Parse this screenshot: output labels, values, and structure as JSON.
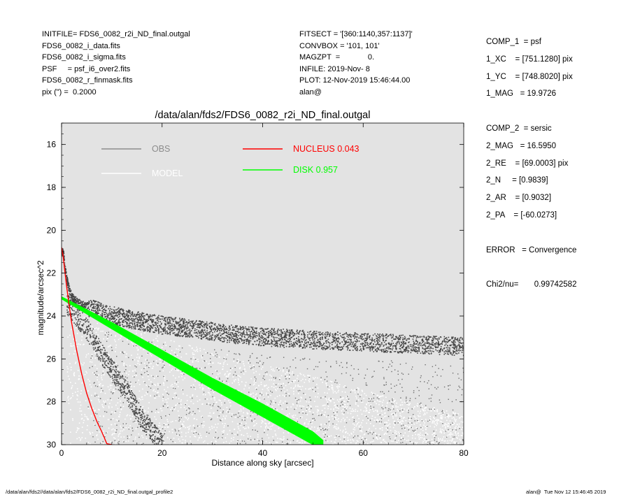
{
  "header_left": [
    "INITFILE= FDS6_0082_r2i_ND_final.outgal",
    "FDS6_0082_i_data.fits",
    "FDS6_0082_i_sigma.fits",
    "PSF     = psf_i6_over2.fits",
    "FDS6_0082_r_finmask.fits",
    "pix (\") =  0.2000"
  ],
  "header_mid": [
    "FITSECT = '[360:1140,357:1137]'",
    "CONVBOX = '101, 101'",
    "MAGZPT  =             0.",
    "INFILE: 2019-Nov- 8",
    "PLOT: 12-Nov-2019 15:46:44.00",
    "alan@"
  ],
  "header_right": [
    "COMP_1  = psf",
    "1_XC    = [751.1280] pix",
    "1_YC    = [748.8020] pix",
    "1_MAG   = 19.9726",
    "",
    "COMP_2  = sersic",
    "2_MAG   = 16.5950",
    "2_RE    = [69.0003] pix",
    "2_N     = [0.9839]",
    "2_AR    = [0.9032]",
    "2_PA    = [-60.0273]",
    "",
    "ERROR   = Convergence",
    "",
    "Chi2/nu=       0.99742582"
  ],
  "footer": {
    "left": "/data/alan/fds2//data/alan/fds2/FDS6_0082_r2i_ND_final.outgal_profile2",
    "right": "alan@  Tue Nov 12 15:46:45 2019"
  },
  "chart_data": {
    "type": "scatter",
    "title": "/data/alan/fds2/FDS6_0082_r2i_ND_final.outgal",
    "xlabel": "Distance along sky [arcsec]",
    "ylabel": "magnitude/arcsec^2",
    "xlim": [
      0,
      80
    ],
    "ylim": [
      30,
      15
    ],
    "y_inverted": true,
    "x_ticks": [
      0,
      20,
      40,
      60,
      80
    ],
    "y_ticks": [
      16,
      18,
      20,
      22,
      24,
      26,
      28,
      30
    ],
    "grid": false,
    "background": "#e3e3e3",
    "legend": [
      {
        "label": "OBS",
        "color": "#8c8c8c",
        "position": "top-left"
      },
      {
        "label": "MODEL",
        "color": "#ffffff",
        "position": "top-left"
      },
      {
        "label": "NUCLEUS  0.043",
        "color": "#ff0000",
        "position": "top-center"
      },
      {
        "label": "DISK  0.957",
        "color": "#00ff00",
        "position": "top-center"
      }
    ],
    "series": [
      {
        "name": "OBS",
        "style": "scatter",
        "color": "#444444",
        "x": [
          0.3,
          0.5,
          1,
          1.5,
          2,
          3,
          4,
          5,
          6,
          8,
          10,
          12,
          15,
          20,
          25,
          30,
          35,
          40,
          50,
          60,
          70,
          80
        ],
        "y": [
          21.0,
          21.6,
          22.3,
          22.8,
          23.1,
          23.3,
          23.45,
          23.55,
          23.65,
          23.8,
          23.95,
          24.05,
          24.2,
          24.4,
          24.55,
          24.7,
          24.85,
          24.95,
          25.1,
          25.2,
          25.3,
          25.4
        ]
      },
      {
        "name": "OBS (lower envelope)",
        "style": "scatter",
        "color": "#444444",
        "x": [
          1,
          3,
          5,
          7,
          10,
          13,
          16,
          20
        ],
        "y": [
          23.4,
          24.0,
          24.6,
          25.4,
          26.5,
          27.6,
          28.8,
          30.0
        ]
      },
      {
        "name": "MODEL",
        "style": "scatter",
        "color": "#ffffff",
        "x": [
          0,
          10,
          20,
          30,
          40,
          50,
          60,
          70,
          80
        ],
        "y": [
          23.2,
          24.5,
          25.4,
          26.0,
          26.6,
          27.2,
          27.8,
          28.4,
          29.0
        ]
      },
      {
        "name": "NUCLEUS",
        "style": "line",
        "color": "#ff0000",
        "x": [
          0,
          0.3,
          0.6,
          1.0,
          1.5,
          2.0,
          3.0,
          4.0,
          5.0,
          6.0,
          7.0,
          8.0,
          9.0,
          10.0
        ],
        "y": [
          20.8,
          21.2,
          21.8,
          22.6,
          23.5,
          24.3,
          25.6,
          26.7,
          27.6,
          28.3,
          28.9,
          29.4,
          29.95,
          30.0
        ]
      },
      {
        "name": "DISK",
        "style": "band",
        "color": "#00ff00",
        "x": [
          0,
          10,
          20,
          30,
          40,
          50,
          52
        ],
        "y_upper": [
          23.1,
          24.3,
          25.6,
          26.9,
          28.1,
          29.4,
          29.8
        ],
        "y_lower": [
          23.2,
          24.6,
          26.0,
          27.4,
          28.7,
          30.0,
          30.0
        ]
      }
    ]
  }
}
